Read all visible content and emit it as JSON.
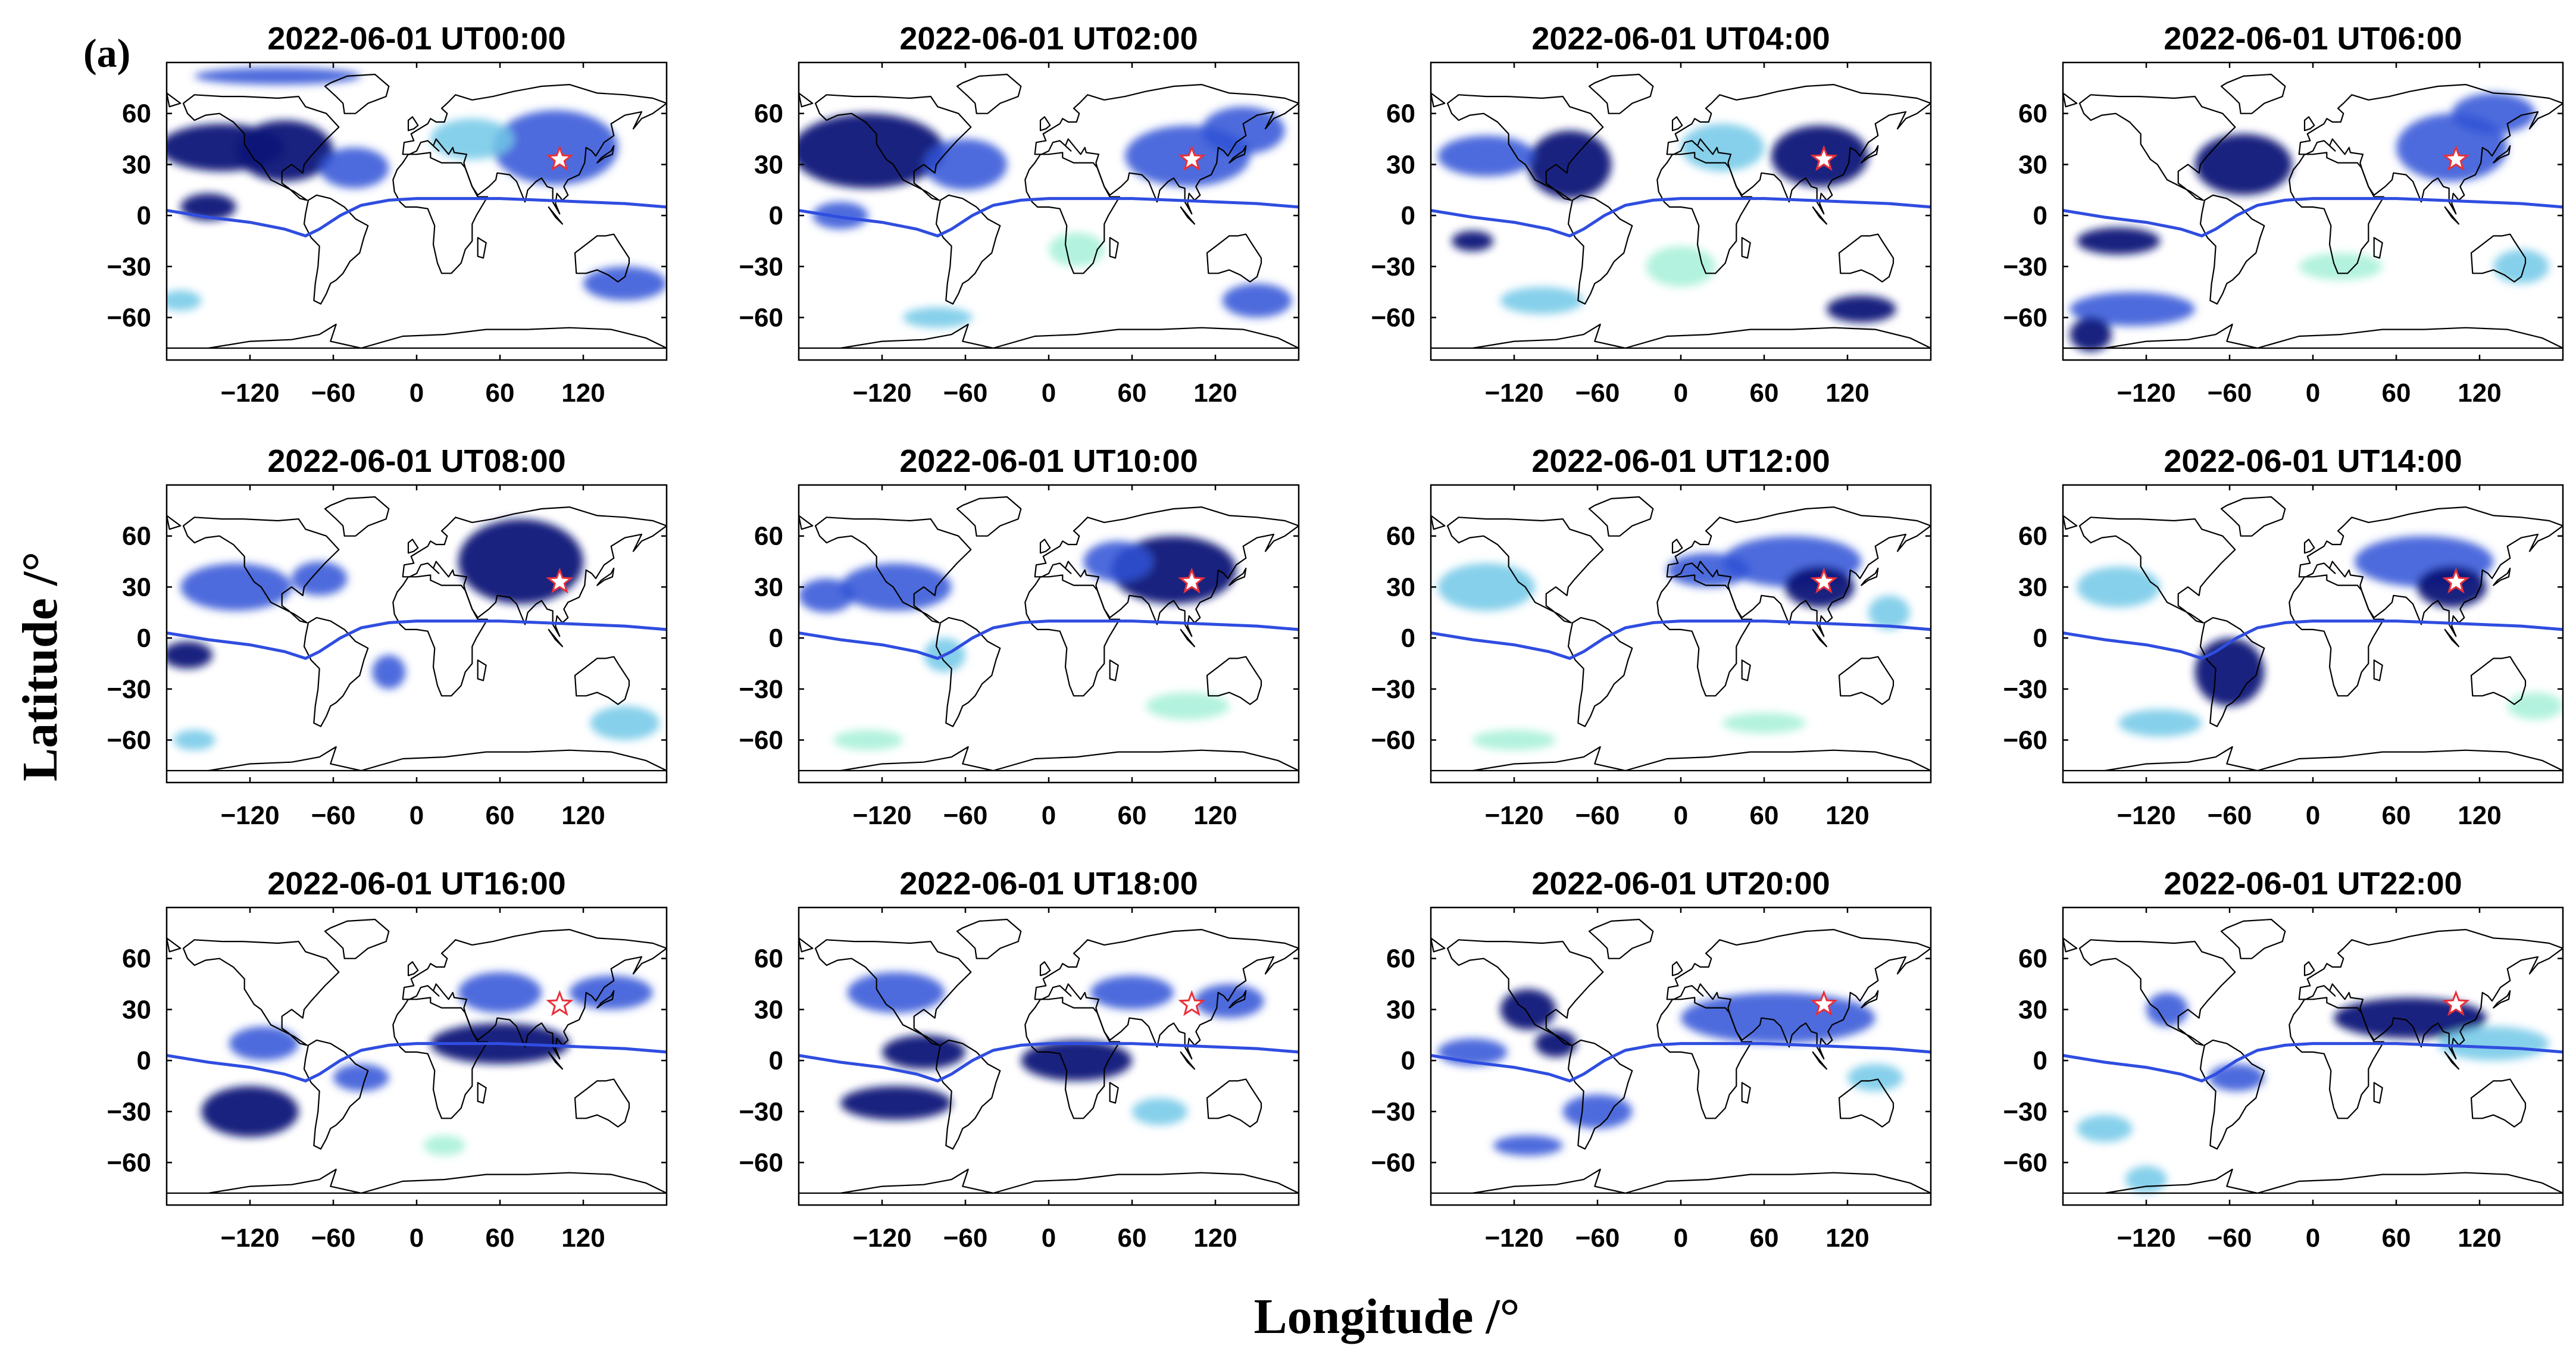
{
  "figure": {
    "panel_tag": "(a)",
    "xlabel": "Longitude /°",
    "ylabel": "Latitude /°"
  },
  "axes": {
    "xlim": [
      -180,
      180
    ],
    "ylim": [
      -85,
      90
    ],
    "xticks": [
      -120,
      -60,
      0,
      60,
      120
    ],
    "yticks": [
      60,
      30,
      0,
      -30,
      -60
    ],
    "xtick_labels": [
      "−120",
      "−60",
      "0",
      "60",
      "120"
    ],
    "ytick_labels": [
      "60",
      "30",
      "0",
      "−30",
      "−60"
    ]
  },
  "marker": {
    "symbol": "star",
    "lon": 103,
    "lat": 33,
    "color": "#e8303a"
  },
  "equator_line_color": "#2f4de0",
  "colors": {
    "deep": "#0a1478",
    "mid": "#2f52d6",
    "light": "#72c8e8",
    "pale": "#a6f0d8",
    "coast": "#000000"
  },
  "panels": [
    {
      "title": "2022-06-01 UT00:00",
      "blobs": [
        [
          -140,
          40,
          45,
          14,
          "deep"
        ],
        [
          -95,
          38,
          35,
          18,
          "deep"
        ],
        [
          -45,
          28,
          25,
          12,
          "mid"
        ],
        [
          100,
          40,
          45,
          22,
          "mid"
        ],
        [
          40,
          45,
          30,
          12,
          "light"
        ],
        [
          -150,
          5,
          20,
          8,
          "deep"
        ],
        [
          150,
          -40,
          30,
          10,
          "mid"
        ],
        [
          -170,
          -50,
          15,
          6,
          "light"
        ],
        [
          -100,
          82,
          60,
          5,
          "mid"
        ]
      ]
    },
    {
      "title": "2022-06-01 UT02:00",
      "blobs": [
        [
          -130,
          38,
          55,
          22,
          "deep"
        ],
        [
          -60,
          30,
          30,
          15,
          "mid"
        ],
        [
          100,
          35,
          45,
          18,
          "mid"
        ],
        [
          140,
          50,
          30,
          14,
          "mid"
        ],
        [
          20,
          -20,
          20,
          10,
          "pale"
        ],
        [
          150,
          -50,
          25,
          10,
          "mid"
        ],
        [
          -150,
          0,
          20,
          8,
          "mid"
        ],
        [
          -80,
          -60,
          25,
          6,
          "light"
        ]
      ]
    },
    {
      "title": "2022-06-01 UT04:00",
      "blobs": [
        [
          -80,
          30,
          30,
          20,
          "deep"
        ],
        [
          -140,
          35,
          35,
          12,
          "mid"
        ],
        [
          100,
          35,
          35,
          18,
          "deep"
        ],
        [
          30,
          40,
          30,
          14,
          "light"
        ],
        [
          0,
          -30,
          25,
          12,
          "pale"
        ],
        [
          130,
          -55,
          25,
          8,
          "deep"
        ],
        [
          -150,
          -15,
          15,
          6,
          "deep"
        ],
        [
          -100,
          -50,
          30,
          8,
          "light"
        ]
      ]
    },
    {
      "title": "2022-06-01 UT06:00",
      "blobs": [
        [
          -50,
          30,
          35,
          18,
          "deep"
        ],
        [
          100,
          40,
          40,
          20,
          "mid"
        ],
        [
          130,
          60,
          30,
          12,
          "mid"
        ],
        [
          -140,
          -15,
          30,
          8,
          "deep"
        ],
        [
          -130,
          -55,
          45,
          10,
          "mid"
        ],
        [
          -160,
          -70,
          15,
          10,
          "deep"
        ],
        [
          20,
          -30,
          30,
          8,
          "pale"
        ],
        [
          150,
          -30,
          20,
          10,
          "light"
        ]
      ]
    },
    {
      "title": "2022-06-01 UT08:00",
      "blobs": [
        [
          75,
          45,
          45,
          25,
          "deep"
        ],
        [
          -130,
          30,
          40,
          14,
          "mid"
        ],
        [
          -70,
          35,
          20,
          10,
          "mid"
        ],
        [
          -165,
          -10,
          18,
          8,
          "deep"
        ],
        [
          -20,
          -20,
          12,
          10,
          "mid"
        ],
        [
          150,
          -50,
          25,
          10,
          "light"
        ],
        [
          -160,
          -60,
          15,
          6,
          "light"
        ]
      ]
    },
    {
      "title": "2022-06-01 UT10:00",
      "blobs": [
        [
          90,
          40,
          45,
          20,
          "deep"
        ],
        [
          -110,
          30,
          40,
          14,
          "mid"
        ],
        [
          -160,
          25,
          20,
          10,
          "mid"
        ],
        [
          50,
          45,
          25,
          12,
          "mid"
        ],
        [
          -75,
          -10,
          15,
          10,
          "light"
        ],
        [
          100,
          -40,
          30,
          8,
          "pale"
        ],
        [
          -130,
          -60,
          25,
          6,
          "pale"
        ]
      ]
    },
    {
      "title": "2022-06-01 UT12:00",
      "blobs": [
        [
          80,
          45,
          50,
          15,
          "mid"
        ],
        [
          100,
          30,
          25,
          12,
          "deep"
        ],
        [
          -140,
          30,
          35,
          14,
          "light"
        ],
        [
          20,
          40,
          30,
          10,
          "mid"
        ],
        [
          -120,
          -60,
          30,
          6,
          "pale"
        ],
        [
          60,
          -50,
          30,
          6,
          "pale"
        ],
        [
          150,
          15,
          15,
          10,
          "light"
        ]
      ]
    },
    {
      "title": "2022-06-01 UT14:00",
      "blobs": [
        [
          -60,
          -20,
          25,
          20,
          "deep"
        ],
        [
          80,
          45,
          50,
          15,
          "mid"
        ],
        [
          100,
          30,
          25,
          12,
          "deep"
        ],
        [
          -140,
          30,
          30,
          12,
          "light"
        ],
        [
          -110,
          -50,
          30,
          8,
          "light"
        ],
        [
          160,
          -40,
          20,
          8,
          "pale"
        ]
      ]
    },
    {
      "title": "2022-06-01 UT16:00",
      "blobs": [
        [
          -120,
          -30,
          35,
          15,
          "deep"
        ],
        [
          -110,
          10,
          25,
          10,
          "mid"
        ],
        [
          60,
          10,
          50,
          12,
          "deep"
        ],
        [
          60,
          40,
          30,
          12,
          "mid"
        ],
        [
          140,
          40,
          30,
          10,
          "mid"
        ],
        [
          -40,
          -10,
          20,
          8,
          "mid"
        ],
        [
          20,
          -50,
          15,
          6,
          "pale"
        ]
      ]
    },
    {
      "title": "2022-06-01 UT18:00",
      "blobs": [
        [
          -110,
          -25,
          40,
          10,
          "deep"
        ],
        [
          -90,
          5,
          30,
          10,
          "deep"
        ],
        [
          20,
          0,
          40,
          12,
          "deep"
        ],
        [
          -110,
          40,
          35,
          12,
          "mid"
        ],
        [
          60,
          40,
          30,
          10,
          "mid"
        ],
        [
          130,
          35,
          25,
          10,
          "mid"
        ],
        [
          80,
          -30,
          20,
          8,
          "light"
        ]
      ]
    },
    {
      "title": "2022-06-01 UT20:00",
      "blobs": [
        [
          70,
          25,
          70,
          15,
          "mid"
        ],
        [
          -110,
          30,
          20,
          12,
          "deep"
        ],
        [
          -150,
          5,
          25,
          8,
          "mid"
        ],
        [
          -60,
          -30,
          25,
          10,
          "mid"
        ],
        [
          -110,
          -50,
          25,
          6,
          "mid"
        ],
        [
          -90,
          10,
          15,
          8,
          "deep"
        ],
        [
          140,
          -10,
          20,
          8,
          "light"
        ]
      ]
    },
    {
      "title": "2022-06-01 UT22:00",
      "blobs": [
        [
          70,
          25,
          55,
          12,
          "deep"
        ],
        [
          -105,
          30,
          15,
          10,
          "mid"
        ],
        [
          -55,
          -10,
          20,
          8,
          "mid"
        ],
        [
          130,
          10,
          40,
          10,
          "light"
        ],
        [
          -150,
          -40,
          20,
          8,
          "light"
        ],
        [
          -120,
          -70,
          15,
          8,
          "light"
        ]
      ]
    }
  ],
  "equator_curve": [
    [
      -180,
      3
    ],
    [
      -150,
      -1
    ],
    [
      -120,
      -4
    ],
    [
      -95,
      -8
    ],
    [
      -80,
      -12
    ],
    [
      -70,
      -8
    ],
    [
      -55,
      0
    ],
    [
      -40,
      6
    ],
    [
      -20,
      9
    ],
    [
      0,
      10
    ],
    [
      30,
      10
    ],
    [
      60,
      10
    ],
    [
      90,
      9
    ],
    [
      120,
      8
    ],
    [
      150,
      7
    ],
    [
      180,
      5
    ]
  ]
}
